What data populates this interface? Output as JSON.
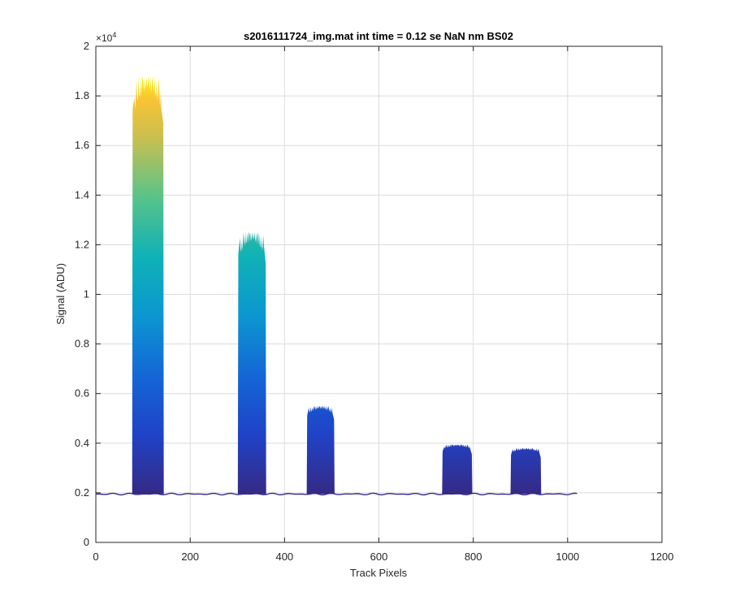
{
  "chart_data": {
    "type": "area",
    "title": "s2016111724_img.mat int time = 0.12 se  NaN nm BS02",
    "xlabel": "Track Pixels",
    "ylabel": "Signal (ADU)",
    "xlim": [
      0,
      1200
    ],
    "ylim": [
      0,
      20000
    ],
    "x_ticks": [
      0,
      200,
      400,
      600,
      800,
      1000,
      1200
    ],
    "x_tick_labels": [
      "0",
      "200",
      "400",
      "600",
      "800",
      "1000",
      "1200"
    ],
    "y_ticks": [
      0,
      2000,
      4000,
      6000,
      8000,
      10000,
      12000,
      14000,
      16000,
      18000,
      20000
    ],
    "y_tick_labels": [
      "0",
      "0.2",
      "0.4",
      "0.6",
      "0.8",
      "1",
      "1.2",
      "1.4",
      "1.6",
      "1.8",
      "2"
    ],
    "y_exponent_base": "×10",
    "y_exponent_power": "4",
    "grid": true,
    "colormap": "parula",
    "baseline": 1950,
    "x_max_data": 1024,
    "peaks": [
      {
        "start": 78,
        "end": 143,
        "max": 18800
      },
      {
        "start": 302,
        "end": 360,
        "max": 12500
      },
      {
        "start": 448,
        "end": 505,
        "max": 5500
      },
      {
        "start": 735,
        "end": 797,
        "max": 3950
      },
      {
        "start": 880,
        "end": 943,
        "max": 3800
      }
    ],
    "colors": {
      "low": "#352a87",
      "high": "#f9fb0e",
      "axis": "#262626",
      "grid": "#dcdcdc"
    }
  }
}
